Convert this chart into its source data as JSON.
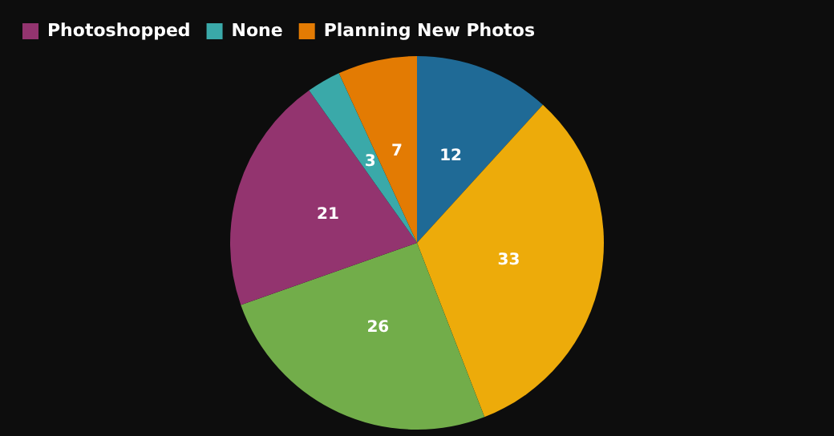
{
  "chart_data": {
    "type": "pie",
    "categories": [
      null,
      null,
      null,
      "Photoshopped",
      "None",
      "Planning New Photos"
    ],
    "values": [
      12,
      33,
      26,
      21,
      3,
      7
    ],
    "colors": [
      "#1f6a96",
      "#edab0a",
      "#72ad4a",
      "#93346f",
      "#3aa9a9",
      "#e37b03"
    ],
    "data_labels": true,
    "legend": "top left"
  }
}
